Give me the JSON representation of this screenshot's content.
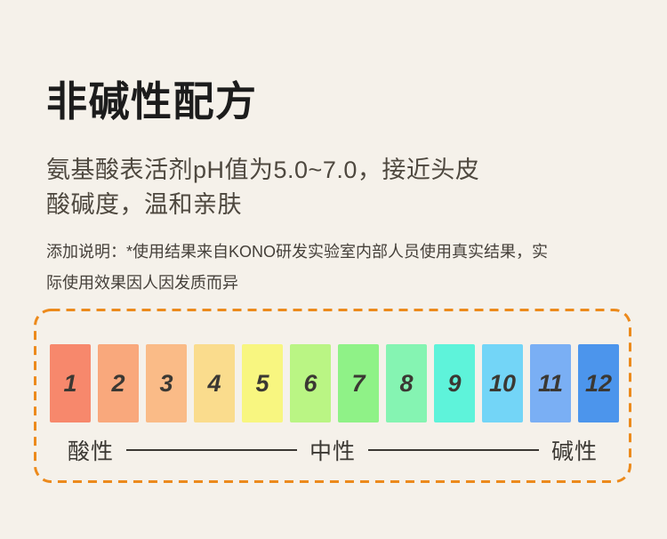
{
  "page": {
    "background": "#F5F1EA",
    "title": "非碱性配方",
    "subtitle_line1": "氨基酸表活剂pH值为5.0~7.0，接近头皮",
    "subtitle_line2": "酸碱度，温和亲肤",
    "note_line1": "添加说明：*使用结果来自KONO研发实验室内部人员使用真实结果，实",
    "note_line2": "际使用效果因人因发质而异"
  },
  "ph_scale": {
    "type": "ph-color-scale",
    "border_color": "#EC8A1C",
    "number_color": "#3B3833",
    "items": [
      {
        "value": "1",
        "color": "#F7886C"
      },
      {
        "value": "2",
        "color": "#F9A87C"
      },
      {
        "value": "3",
        "color": "#FABB87"
      },
      {
        "value": "4",
        "color": "#FADC8D"
      },
      {
        "value": "5",
        "color": "#F8F680"
      },
      {
        "value": "6",
        "color": "#BAF584"
      },
      {
        "value": "7",
        "color": "#8FF287"
      },
      {
        "value": "8",
        "color": "#85F4B2"
      },
      {
        "value": "9",
        "color": "#5EF3DA"
      },
      {
        "value": "10",
        "color": "#73D5F7"
      },
      {
        "value": "11",
        "color": "#7AAFF4"
      },
      {
        "value": "12",
        "color": "#4C95EC"
      }
    ],
    "labels": {
      "acidic": "酸性",
      "neutral": "中性",
      "alkaline": "碱性"
    }
  }
}
